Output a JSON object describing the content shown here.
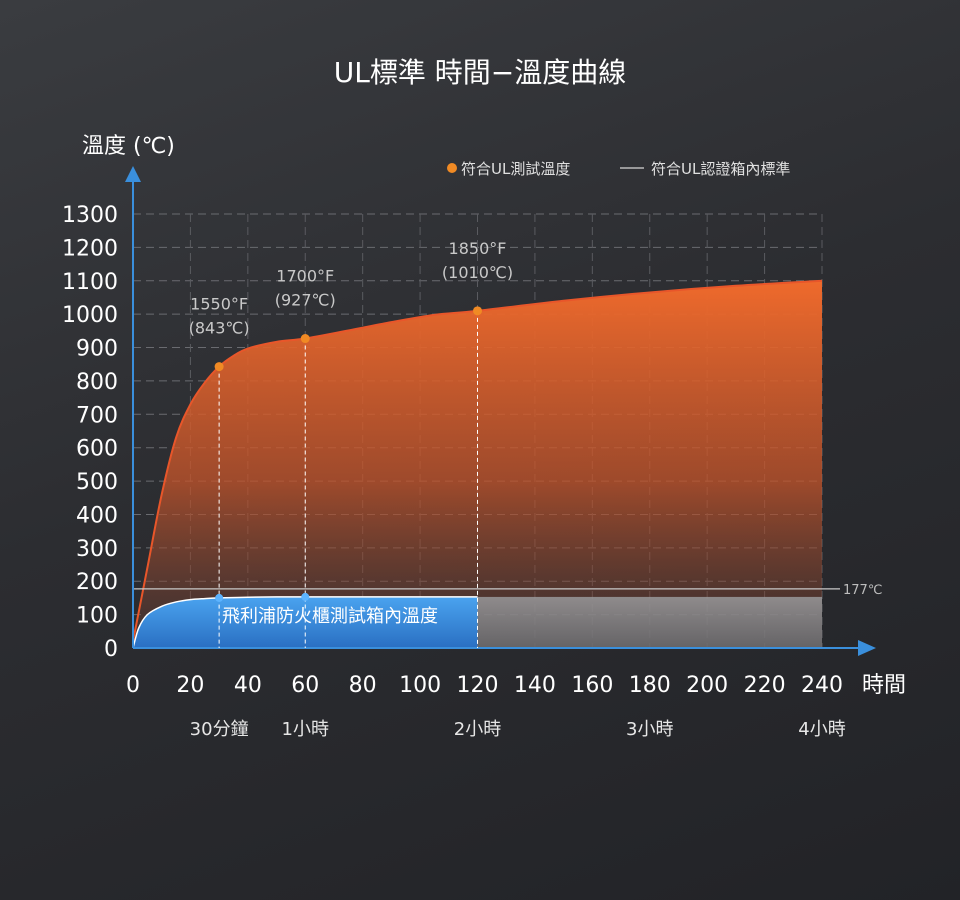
{
  "chart_data": {
    "type": "area",
    "title": "UL標準 時間−溫度曲線",
    "ylabel": "溫度 (℃)",
    "xlabel": "時間",
    "ylim": [
      0,
      1300
    ],
    "xlim": [
      0,
      240
    ],
    "y_ticks": [
      0,
      100,
      200,
      300,
      400,
      500,
      600,
      700,
      800,
      900,
      1000,
      1100,
      1200,
      1300
    ],
    "x_ticks": [
      0,
      20,
      40,
      60,
      80,
      100,
      120,
      140,
      160,
      180,
      200,
      220,
      240
    ],
    "x_sublabels": [
      {
        "x": 30,
        "label": "30分鐘"
      },
      {
        "x": 60,
        "label": "1小時"
      },
      {
        "x": 120,
        "label": "2小時"
      },
      {
        "x": 180,
        "label": "3小時"
      },
      {
        "x": 240,
        "label": "4小時"
      }
    ],
    "legend": [
      {
        "label": "符合UL測試溫度",
        "marker": "dot",
        "color": "#f08a24"
      },
      {
        "label": "符合UL認證箱內標準",
        "marker": "line",
        "color": "#bbbbbb"
      }
    ],
    "series": [
      {
        "name": "符合UL測試溫度",
        "color": "#e8562a",
        "x": [
          0,
          5,
          10,
          15,
          20,
          25,
          30,
          35,
          40,
          50,
          60,
          75,
          90,
          105,
          120,
          150,
          180,
          210,
          240
        ],
        "values": [
          20,
          240,
          460,
          630,
          730,
          795,
          843,
          875,
          897,
          917,
          927,
          951,
          976,
          998,
          1010,
          1040,
          1065,
          1085,
          1100
        ]
      },
      {
        "name": "飛利浦防火櫃測試箱內溫度",
        "color": "#3a8fdc",
        "x": [
          0,
          2,
          5,
          10,
          15,
          20,
          25,
          30,
          40,
          50,
          60,
          80,
          100,
          120
        ],
        "values": [
          0,
          60,
          100,
          125,
          138,
          145,
          148,
          150,
          152,
          153,
          153,
          153,
          153,
          153
        ]
      }
    ],
    "annotations": [
      {
        "x": 30,
        "y": 843,
        "label_f": "1550°F",
        "label_c": "(843℃)"
      },
      {
        "x": 60,
        "y": 927,
        "label_f": "1700°F",
        "label_c": "(927℃)"
      },
      {
        "x": 120,
        "y": 1010,
        "label_f": "1850°F",
        "label_c": "(1010℃)"
      }
    ],
    "reference_line": {
      "y": 177,
      "label": "177℃"
    },
    "inner_label": "飛利浦防火櫃測試箱內溫度",
    "inner_grey_band": {
      "x_from": 120,
      "x_to": 240,
      "value": 153
    }
  }
}
